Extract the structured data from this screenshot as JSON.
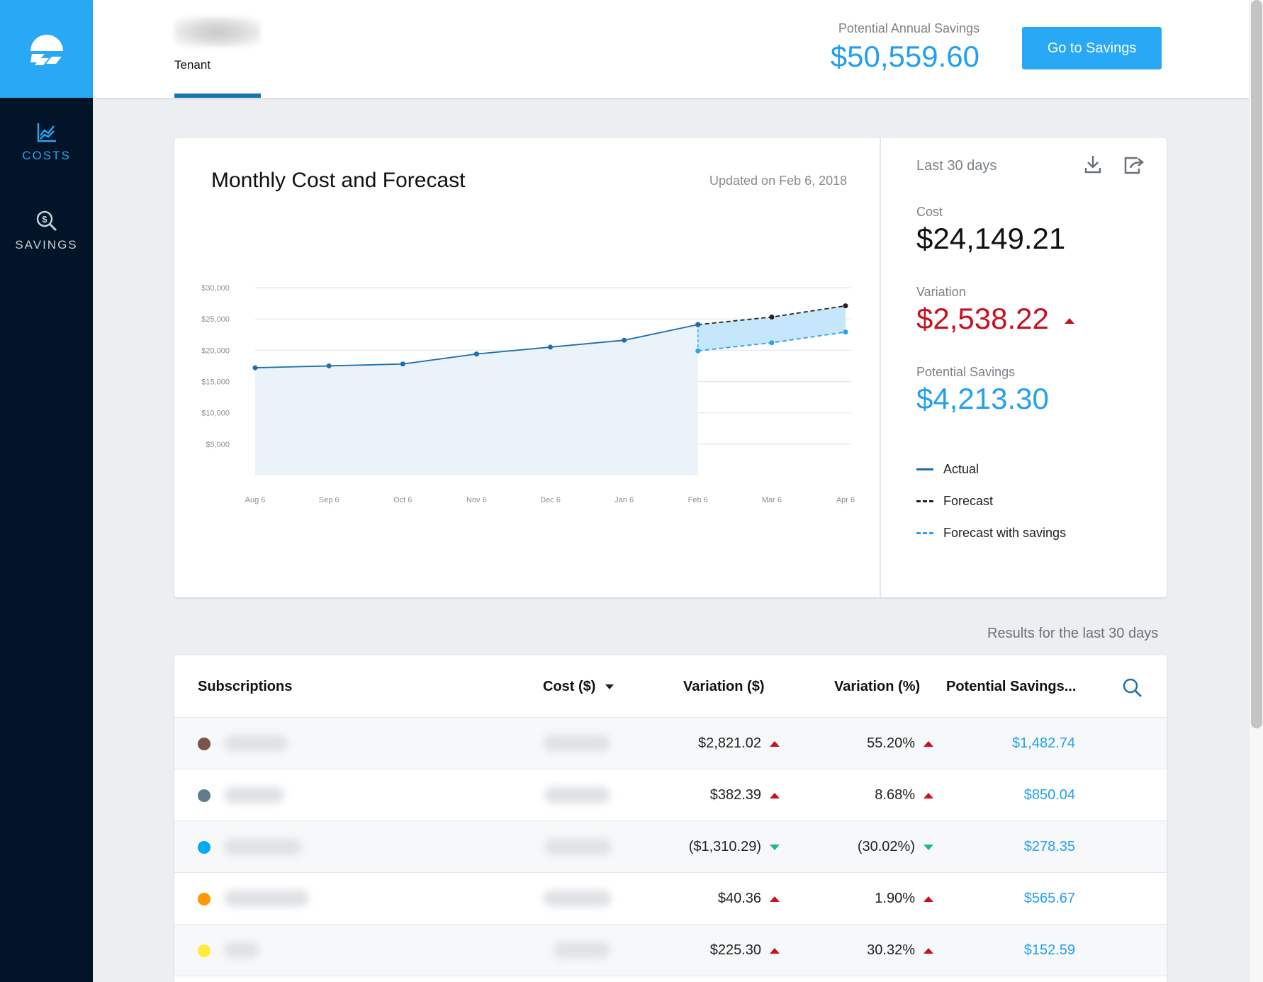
{
  "sidebar": {
    "logo_icon": "cloud-stripes-logo",
    "items": [
      {
        "label": "COSTS",
        "icon": "chart-line-icon",
        "active": true
      },
      {
        "label": "SAVINGS",
        "icon": "dollar-search-icon",
        "active": false
      }
    ]
  },
  "header": {
    "tenant_label": "Tenant",
    "potential_annual_savings_label": "Potential Annual Savings",
    "potential_annual_savings_value": "$50,559.60",
    "go_button_label": "Go to Savings"
  },
  "chart_card": {
    "title": "Monthly Cost and Forecast",
    "updated": "Updated on Feb 6, 2018"
  },
  "stats": {
    "period": "Last 30 days",
    "cost_label": "Cost",
    "cost_value": "$24,149.21",
    "variation_label": "Variation",
    "variation_value": "$2,538.22",
    "variation_direction": "up",
    "savings_label": "Potential Savings",
    "savings_value": "$4,213.30",
    "legend": [
      {
        "label": "Actual",
        "style": "solid",
        "color": "#1a6fae"
      },
      {
        "label": "Forecast",
        "style": "dashed",
        "color": "#222222"
      },
      {
        "label": "Forecast with savings",
        "style": "dashed",
        "color": "#29a3ee"
      }
    ]
  },
  "chart_data": {
    "type": "line",
    "title": "Monthly Cost and Forecast",
    "categories": [
      "Aug 6",
      "Sep 6",
      "Oct 6",
      "Nov 6",
      "Dec 6",
      "Jan 6",
      "Feb 6",
      "Mar 6",
      "Apr 6"
    ],
    "y_ticks": [
      "$5,000",
      "$10,000",
      "$15,000",
      "$20,000",
      "$25,000",
      "$30,000"
    ],
    "ylim": [
      0,
      30000
    ],
    "grid": true,
    "series": [
      {
        "name": "Actual",
        "values": [
          17200,
          17500,
          17800,
          19400,
          20500,
          21600,
          24100,
          null,
          null
        ],
        "color": "#1a6fae",
        "style": "solid"
      },
      {
        "name": "Forecast",
        "values": [
          null,
          null,
          null,
          null,
          null,
          null,
          24100,
          25300,
          27100
        ],
        "color": "#222222",
        "style": "dashed"
      },
      {
        "name": "Forecast with savings",
        "values": [
          null,
          null,
          null,
          null,
          null,
          null,
          19900,
          21200,
          22900
        ],
        "color": "#29a3ee",
        "style": "dashed"
      }
    ]
  },
  "results_note": "Results for the last 30 days",
  "table": {
    "columns": [
      "Subscriptions",
      "Cost ($)",
      "Variation ($)",
      "Variation (%)",
      "Potential Savings..."
    ],
    "rows": [
      {
        "color": "#795548",
        "variation": "$2,821.02",
        "variation_dir": "up",
        "variation_pct": "55.20%",
        "pct_dir": "up",
        "savings": "$1,482.74"
      },
      {
        "color": "#607d8b",
        "variation": "$382.39",
        "variation_dir": "up",
        "variation_pct": "8.68%",
        "pct_dir": "up",
        "savings": "$850.04"
      },
      {
        "color": "#03a9f4",
        "variation": "($1,310.29)",
        "variation_dir": "down",
        "variation_pct": "(30.02%)",
        "pct_dir": "down",
        "savings": "$278.35"
      },
      {
        "color": "#ff9800",
        "variation": "$40.36",
        "variation_dir": "up",
        "variation_pct": "1.90%",
        "pct_dir": "up",
        "savings": "$565.67"
      },
      {
        "color": "#ffeb3b",
        "variation": "$225.30",
        "variation_dir": "up",
        "variation_pct": "30.32%",
        "pct_dir": "up",
        "savings": "$152.59"
      }
    ]
  }
}
